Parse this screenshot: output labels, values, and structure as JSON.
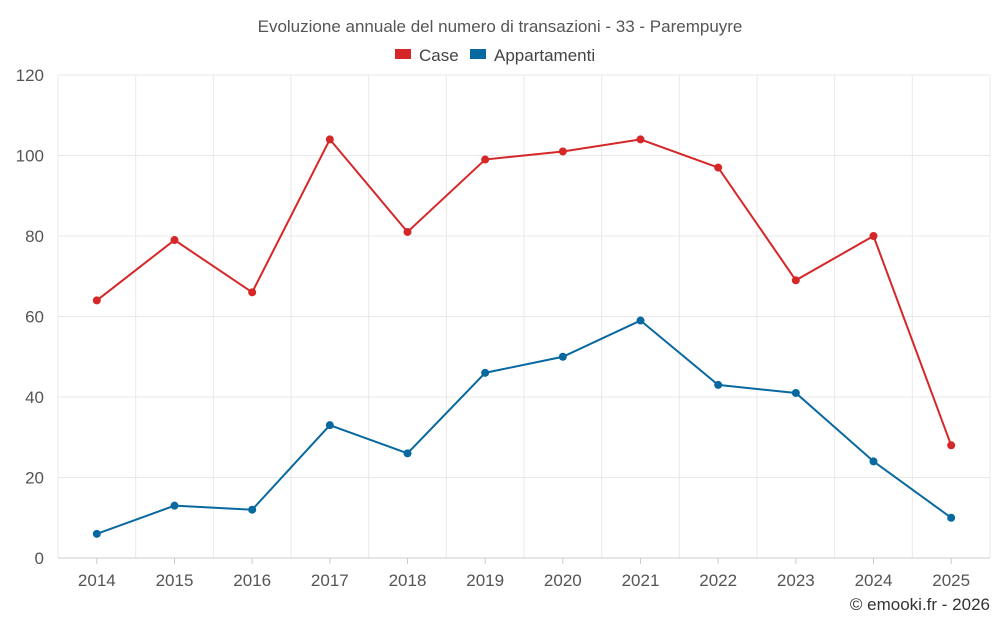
{
  "chart_data": {
    "type": "line",
    "title": "Evoluzione annuale del numero di transazioni - 33 - Parempuyre",
    "categories": [
      "2014",
      "2015",
      "2016",
      "2017",
      "2018",
      "2019",
      "2020",
      "2021",
      "2022",
      "2023",
      "2024",
      "2025"
    ],
    "series": [
      {
        "name": "Case",
        "color": "#d62728",
        "values": [
          64,
          79,
          66,
          104,
          81,
          99,
          101,
          104,
          97,
          69,
          80,
          28
        ]
      },
      {
        "name": "Appartamenti",
        "color": "#0868a0",
        "values": [
          6,
          13,
          12,
          33,
          26,
          46,
          50,
          59,
          43,
          41,
          24,
          10
        ]
      }
    ],
    "ylim": [
      0,
      120
    ],
    "yticks": [
      0,
      20,
      40,
      60,
      80,
      100,
      120
    ],
    "grid": true,
    "legend_position": "top-center",
    "xlabel": "",
    "ylabel": ""
  },
  "credit": "© emooki.fr - 2026"
}
